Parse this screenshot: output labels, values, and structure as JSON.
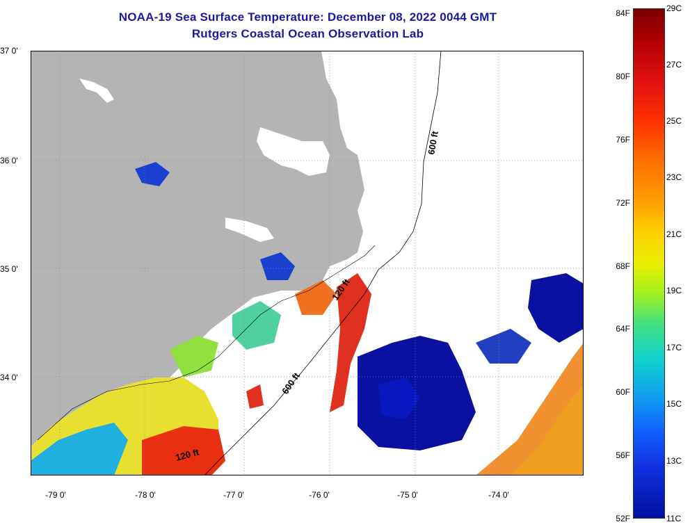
{
  "title": {
    "line1": "NOAA-19 Sea Surface Temperature:  December 08, 2022 0044 GMT",
    "line2": "Rutgers Coastal Ocean Observation Lab"
  },
  "map": {
    "lat_labels": [
      "37 0'",
      "36 0'",
      "35 0'",
      "34 0'"
    ],
    "lon_labels": [
      "-79 0'",
      "-78 0'",
      "-77 0'",
      "-76 0'",
      "-75 0'",
      "-74 0'"
    ],
    "contour_labels": [
      "600 ft",
      "120 ft",
      "600 ft",
      "120 ft"
    ],
    "colors": {
      "land": "#b4b4b4",
      "no_data": "#ffffff",
      "frame": "#000000"
    }
  },
  "colorbar": {
    "fahrenheit": [
      "84F",
      "80F",
      "76F",
      "72F",
      "68F",
      "64F",
      "60F",
      "56F",
      "52F"
    ],
    "celsius": [
      "29C",
      "27C",
      "25C",
      "23C",
      "21C",
      "19C",
      "17C",
      "15C",
      "13C",
      "11C"
    ]
  }
}
